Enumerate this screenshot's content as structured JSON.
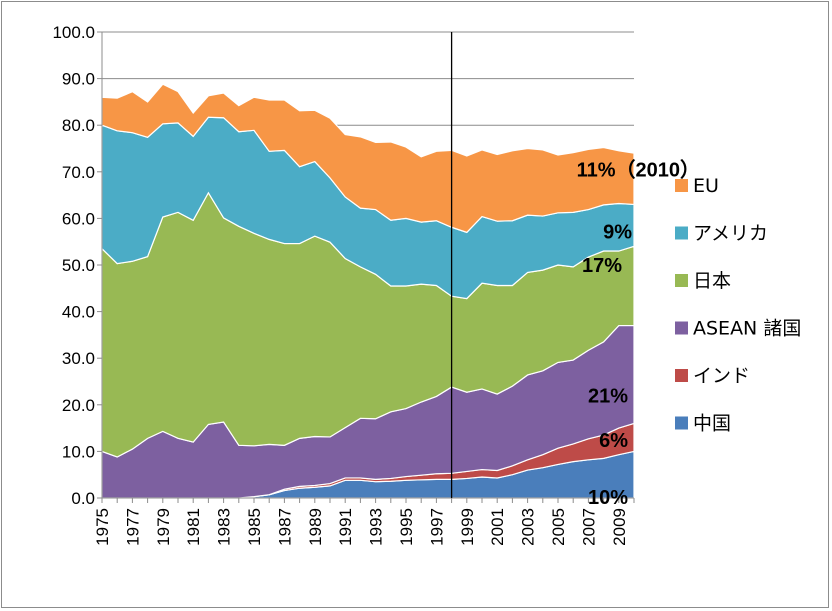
{
  "chart_data": {
    "type": "area",
    "stacked": true,
    "x": [
      1975,
      1976,
      1977,
      1978,
      1979,
      1980,
      1981,
      1982,
      1983,
      1984,
      1985,
      1986,
      1987,
      1988,
      1989,
      1990,
      1991,
      1992,
      1993,
      1994,
      1995,
      1996,
      1997,
      1998,
      1999,
      2000,
      2001,
      2002,
      2003,
      2004,
      2005,
      2006,
      2007,
      2008,
      2009,
      2010
    ],
    "x_tick_labels": [
      "1975",
      "1977",
      "1979",
      "1981",
      "1983",
      "1985",
      "1987",
      "1989",
      "1991",
      "1993",
      "1995",
      "1997",
      "1999",
      "2001",
      "2003",
      "2005",
      "2007",
      "2009"
    ],
    "ylim": [
      0,
      100
    ],
    "y_tick_labels": [
      "0.0",
      "10.0",
      "20.0",
      "30.0",
      "40.0",
      "50.0",
      "60.0",
      "70.0",
      "80.0",
      "90.0",
      "100.0"
    ],
    "vertical_line_at": 1998,
    "legend_position": "right",
    "series": [
      {
        "name": "中国",
        "color": "#4a7ebb",
        "values": [
          0,
          0,
          0,
          0,
          0,
          0,
          0,
          0,
          0,
          0,
          0.3,
          0.7,
          1.6,
          2.1,
          2.3,
          2.6,
          3.8,
          3.8,
          3.5,
          3.6,
          3.8,
          3.9,
          4.0,
          4.0,
          4.2,
          4.5,
          4.3,
          5.0,
          6.0,
          6.5,
          7.2,
          7.8,
          8.2,
          8.5,
          9.3,
          10.0
        ]
      },
      {
        "name": "インド",
        "color": "#be4b48",
        "values": [
          0,
          0,
          0,
          0,
          0,
          0,
          0,
          0,
          0,
          0,
          0,
          0,
          0.3,
          0.4,
          0.4,
          0.5,
          0.5,
          0.5,
          0.5,
          0.6,
          0.8,
          1.0,
          1.2,
          1.3,
          1.5,
          1.6,
          1.6,
          1.9,
          2.2,
          2.8,
          3.5,
          3.8,
          4.5,
          5.0,
          5.7,
          6.0
        ]
      },
      {
        "name": "ASEAN 諸国",
        "color": "#7d60a0",
        "values": [
          10.0,
          8.8,
          10.5,
          12.8,
          14.3,
          12.8,
          12.0,
          15.8,
          16.3,
          11.3,
          10.9,
          10.8,
          9.4,
          10.3,
          10.5,
          10.0,
          10.8,
          12.8,
          13.0,
          14.3,
          14.6,
          15.7,
          16.6,
          18.5,
          17.0,
          17.3,
          16.4,
          17.1,
          18.2,
          18.0,
          18.4,
          18.0,
          19.0,
          20.0,
          22.0,
          21.0
        ]
      },
      {
        "name": "日本",
        "color": "#98b954",
        "values": [
          43.5,
          41.5,
          40.3,
          39.0,
          46.0,
          48.5,
          47.6,
          49.7,
          43.8,
          47.0,
          45.6,
          44.0,
          43.3,
          41.8,
          43.0,
          41.8,
          36.3,
          32.5,
          31.0,
          27.0,
          26.3,
          25.3,
          23.8,
          19.5,
          20.1,
          22.7,
          23.3,
          21.6,
          22.0,
          21.6,
          20.9,
          20.0,
          20.0,
          19.5,
          16.0,
          17.0
        ]
      },
      {
        "name": "アメリカ",
        "color": "#4bacc6",
        "values": [
          26.5,
          28.5,
          27.6,
          25.6,
          20.0,
          19.2,
          18.0,
          16.2,
          21.5,
          20.3,
          22.1,
          18.9,
          20.0,
          16.5,
          16.0,
          13.8,
          13.2,
          12.6,
          13.9,
          14.1,
          14.5,
          13.3,
          13.9,
          14.8,
          14.2,
          14.3,
          13.8,
          13.9,
          12.3,
          11.6,
          11.2,
          11.7,
          10.2,
          9.9,
          10.2,
          9.0
        ]
      },
      {
        "name": "EU",
        "color": "#f79646",
        "values": [
          6.0,
          7.0,
          8.8,
          7.6,
          8.5,
          6.7,
          5.0,
          4.6,
          5.3,
          5.6,
          7.1,
          11.0,
          10.8,
          12.0,
          11.0,
          12.8,
          13.4,
          15.3,
          14.4,
          16.8,
          15.3,
          14.0,
          14.9,
          16.5,
          16.4,
          14.3,
          14.3,
          15.0,
          14.3,
          14.2,
          12.4,
          12.8,
          12.9,
          12.3,
          11.3,
          11.0
        ]
      }
    ],
    "annotations": [
      {
        "text": "11%（2010）",
        "series": "EU"
      },
      {
        "text": "9%",
        "series": "アメリカ"
      },
      {
        "text": "17%",
        "series": "日本"
      },
      {
        "text": "21%",
        "series": "ASEAN 諸国"
      },
      {
        "text": "6%",
        "series": "インド"
      },
      {
        "text": "10%",
        "series": "中国"
      }
    ]
  }
}
